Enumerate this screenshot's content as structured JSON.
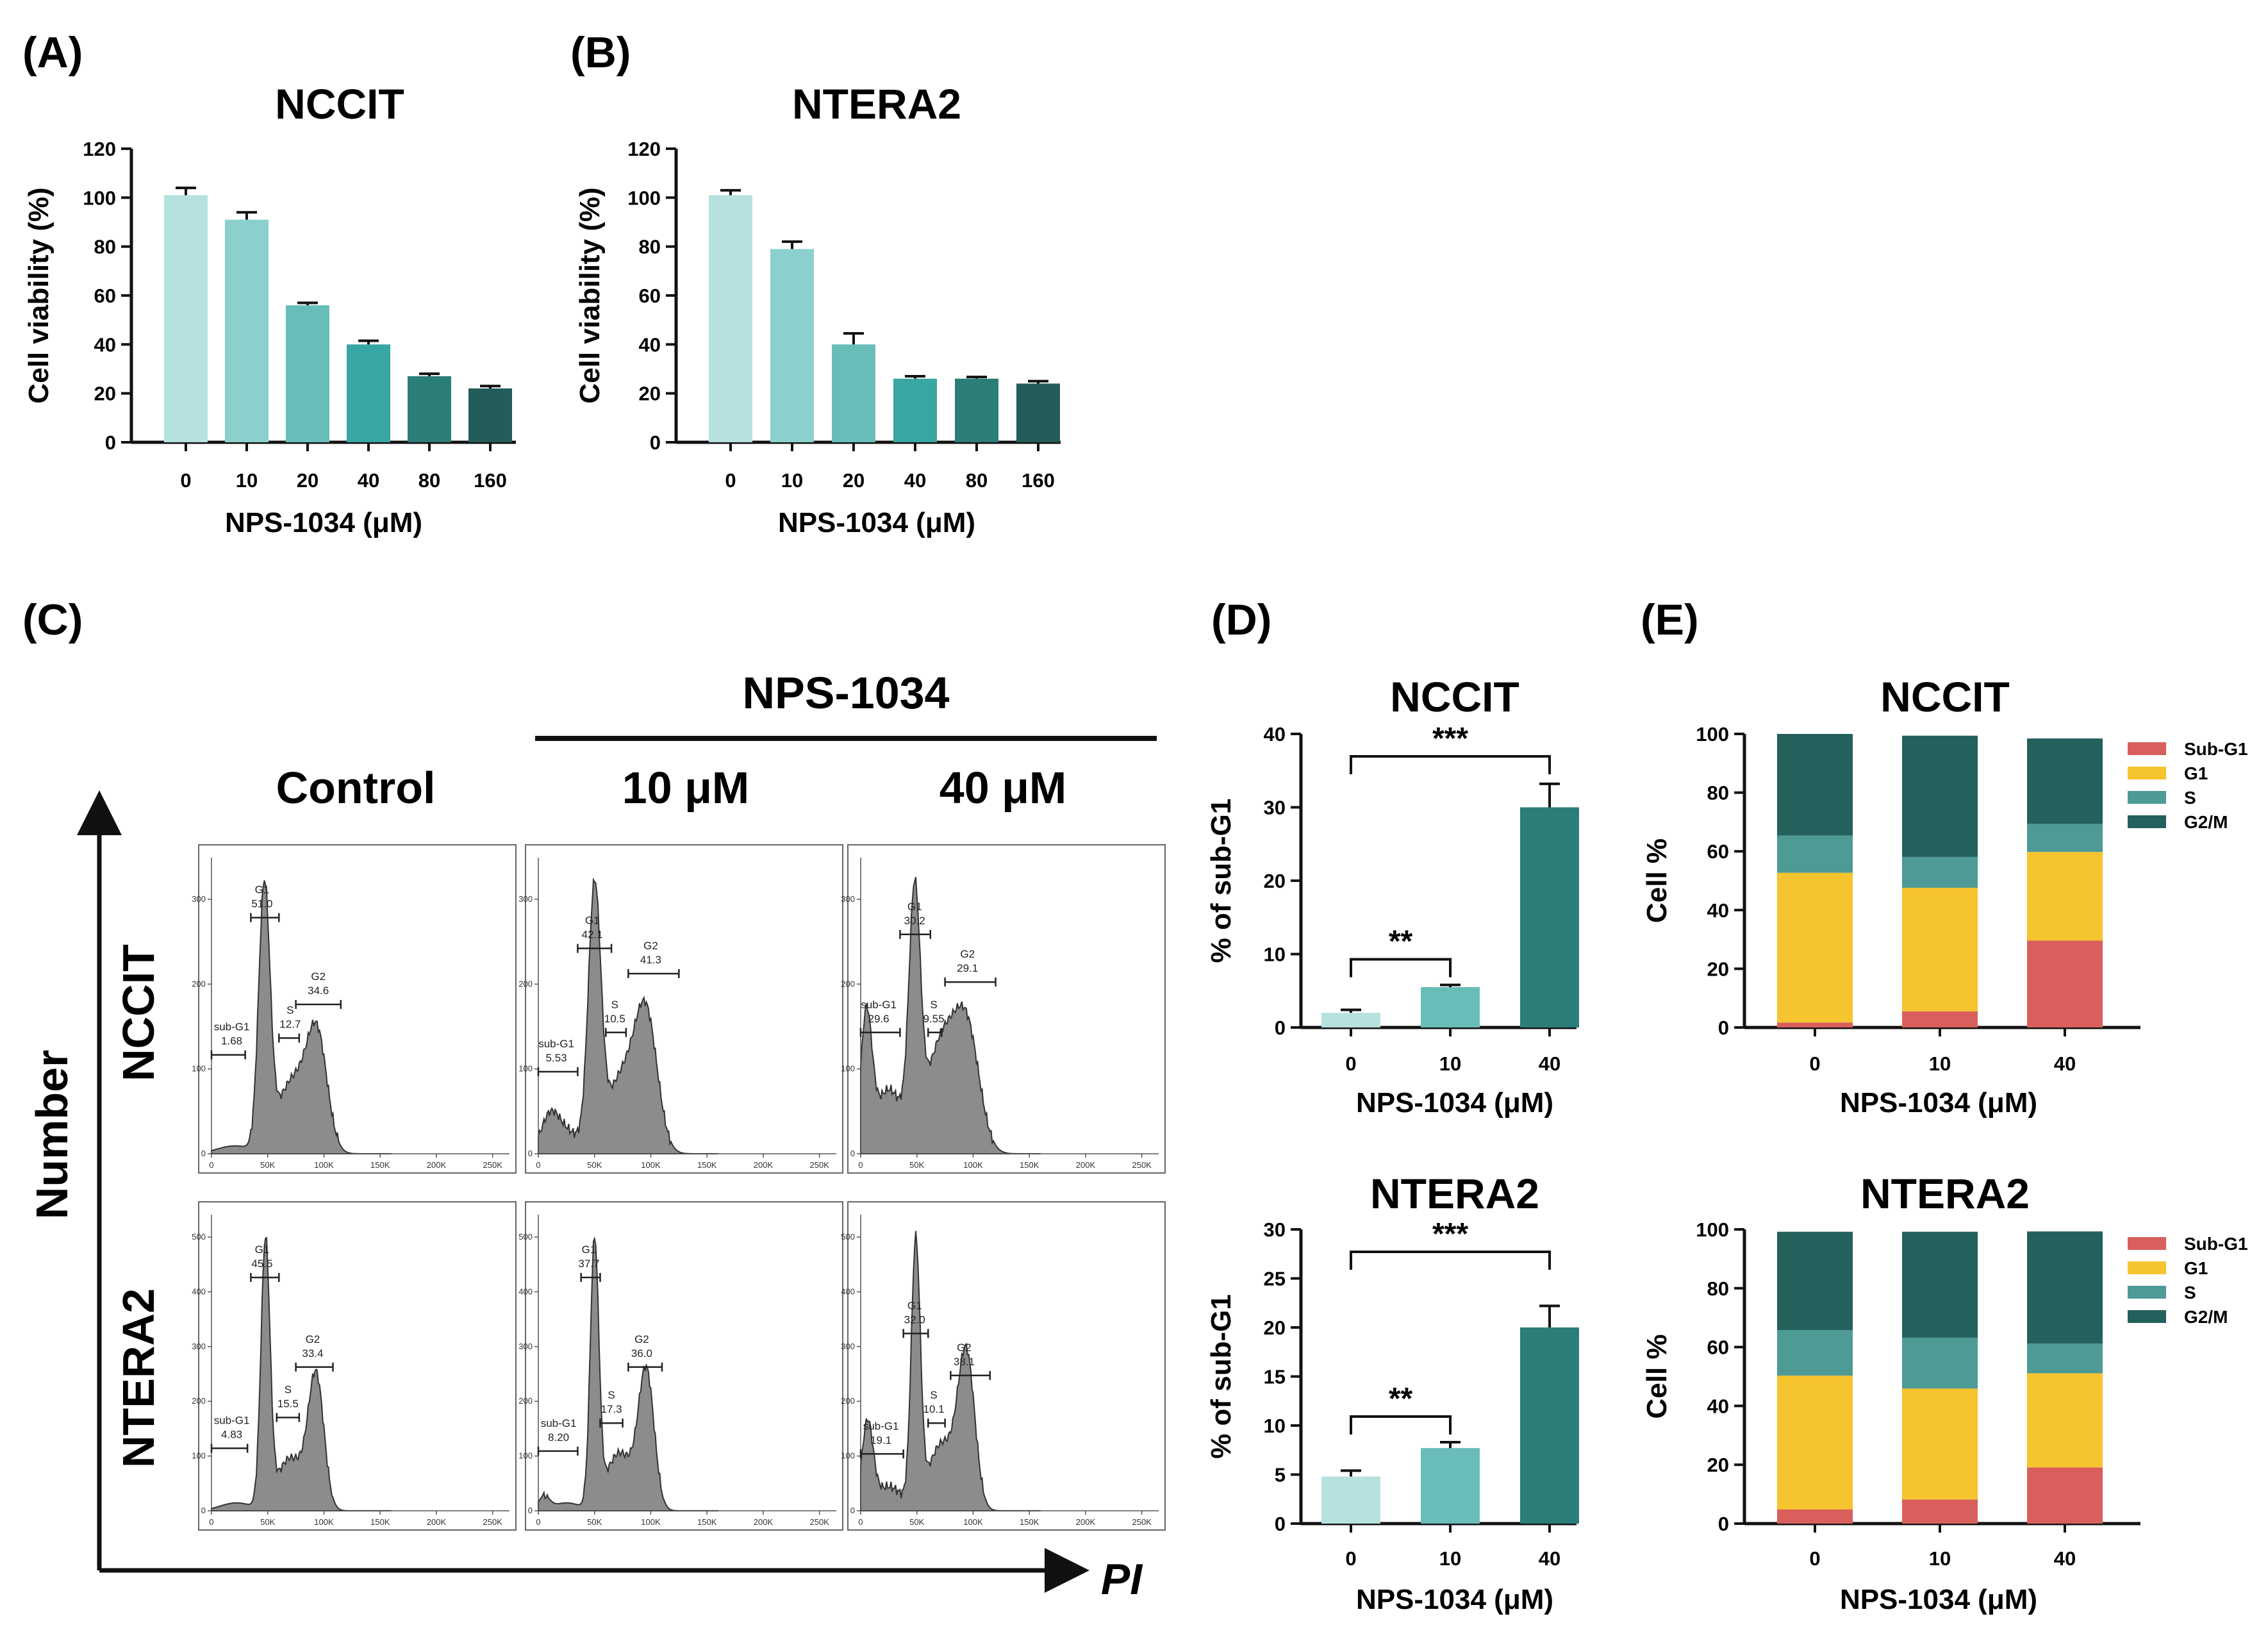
{
  "panels": {
    "A": "(A)",
    "B": "(B)",
    "C": "(C)",
    "D": "(D)",
    "E": "(E)"
  },
  "panel_c": {
    "treatment_header": "NPS-1034",
    "col_headers": [
      "Control",
      "10 μM",
      "40 μM"
    ],
    "row_headers": [
      "NCCIT",
      "NTERA2"
    ],
    "y_axis_label": "Number",
    "x_axis_label": "PI",
    "x_ticks": [
      "0",
      "50K",
      "100K",
      "150K",
      "200K",
      "250K"
    ],
    "y_ticks_nccit": [
      "0",
      "100",
      "200",
      "300"
    ],
    "y_ticks_ntera2": [
      "0",
      "100",
      "200",
      "300",
      "400",
      "500"
    ],
    "histograms": [
      {
        "row": "NCCIT",
        "condition": "Control",
        "gates": [
          {
            "name": "G1",
            "value": "51.0"
          },
          {
            "name": "G2",
            "value": "34.6"
          },
          {
            "name": "S",
            "value": "12.7"
          },
          {
            "name": "sub-G1",
            "value": "1.68"
          }
        ]
      },
      {
        "row": "NCCIT",
        "condition": "10 μM",
        "gates": [
          {
            "name": "G1",
            "value": "42.1"
          },
          {
            "name": "G2",
            "value": "41.3"
          },
          {
            "name": "S",
            "value": "10.5"
          },
          {
            "name": "sub-G1",
            "value": "5.53"
          }
        ]
      },
      {
        "row": "NCCIT",
        "condition": "40 μM",
        "gates": [
          {
            "name": "G1",
            "value": "30.2"
          },
          {
            "name": "G2",
            "value": "29.1"
          },
          {
            "name": "S",
            "value": "9.55"
          },
          {
            "name": "sub-G1",
            "value": "29.6"
          }
        ]
      },
      {
        "row": "NTERA2",
        "condition": "Control",
        "gates": [
          {
            "name": "G1",
            "value": "45.5"
          },
          {
            "name": "G2",
            "value": "33.4"
          },
          {
            "name": "S",
            "value": "15.5"
          },
          {
            "name": "sub-G1",
            "value": "4.83"
          }
        ]
      },
      {
        "row": "NTERA2",
        "condition": "10 μM",
        "gates": [
          {
            "name": "G1",
            "value": "37.7"
          },
          {
            "name": "G2",
            "value": "36.0"
          },
          {
            "name": "S",
            "value": "17.3"
          },
          {
            "name": "sub-G1",
            "value": "8.20"
          }
        ]
      },
      {
        "row": "NTERA2",
        "condition": "40 μM",
        "gates": [
          {
            "name": "G1",
            "value": "32.0"
          },
          {
            "name": "G2",
            "value": "38.1"
          },
          {
            "name": "S",
            "value": "10.1"
          },
          {
            "name": "sub-G1",
            "value": "19.1"
          }
        ]
      }
    ]
  },
  "chart_data": [
    {
      "id": "A",
      "type": "bar",
      "title": "NCCIT",
      "xlabel": "NPS-1034  (μM)",
      "ylabel": "Cell viability (%)",
      "categories": [
        "0",
        "10",
        "20",
        "40",
        "80",
        "160"
      ],
      "values": [
        101,
        91,
        56,
        40,
        27,
        22
      ],
      "errors": [
        3,
        3,
        1,
        1.5,
        1,
        1
      ],
      "ylim": [
        0,
        120
      ],
      "yticks": [
        "0",
        "20",
        "40",
        "60",
        "80",
        "100",
        "120"
      ],
      "colors": [
        "#b5e1df",
        "#8bd0cc",
        "#68bdb8",
        "#38a6a2",
        "#2b7d78",
        "#235c59"
      ]
    },
    {
      "id": "B",
      "type": "bar",
      "title": "NTERA2",
      "xlabel": "NPS-1034  (μM)",
      "ylabel": "Cell viability (%)",
      "categories": [
        "0",
        "10",
        "20",
        "40",
        "80",
        "160"
      ],
      "values": [
        101,
        79,
        40,
        26,
        26,
        24
      ],
      "errors": [
        2,
        3,
        4.5,
        1,
        0.7,
        1
      ],
      "ylim": [
        0,
        120
      ],
      "yticks": [
        "0",
        "20",
        "40",
        "60",
        "80",
        "100",
        "120"
      ],
      "colors": [
        "#b5e1df",
        "#8bd0cc",
        "#68bdb8",
        "#38a6a2",
        "#2b7d78",
        "#235c59"
      ]
    },
    {
      "id": "D1",
      "type": "bar",
      "title": "NCCIT",
      "xlabel": "NPS-1034  (μM)",
      "ylabel": "% of sub-G1",
      "categories": [
        "0",
        "10",
        "40"
      ],
      "values": [
        2,
        5.5,
        30
      ],
      "errors": [
        0.4,
        0.3,
        3.2
      ],
      "ylim": [
        0,
        40
      ],
      "yticks": [
        "0",
        "10",
        "20",
        "30",
        "40"
      ],
      "colors": [
        "#b5e1df",
        "#68bdb8",
        "#2b7d78"
      ],
      "significance": [
        {
          "from": "0",
          "to": "10",
          "label": "**"
        },
        {
          "from": "0",
          "to": "40",
          "label": "***"
        }
      ]
    },
    {
      "id": "D2",
      "type": "bar",
      "title": "NTERA2",
      "xlabel": "NPS-1034  (μM)",
      "ylabel": "% of sub-G1",
      "categories": [
        "0",
        "10",
        "40"
      ],
      "values": [
        4.8,
        7.7,
        20
      ],
      "errors": [
        0.6,
        0.6,
        2.2
      ],
      "ylim": [
        0,
        30
      ],
      "yticks": [
        "0",
        "5",
        "10",
        "15",
        "20",
        "25",
        "30"
      ],
      "colors": [
        "#b5e1df",
        "#68bdb8",
        "#2b7d78"
      ],
      "significance": [
        {
          "from": "0",
          "to": "10",
          "label": "**"
        },
        {
          "from": "0",
          "to": "40",
          "label": "***"
        }
      ]
    },
    {
      "id": "E1",
      "type": "bar",
      "stacked": true,
      "title": "NCCIT",
      "xlabel": "NPS-1034  (μM)",
      "ylabel": "Cell %",
      "categories": [
        "0",
        "10",
        "40"
      ],
      "ylim": [
        0,
        100
      ],
      "yticks": [
        "0",
        "20",
        "40",
        "60",
        "80",
        "100"
      ],
      "series": [
        {
          "name": "Sub-G1",
          "color": "#d95f5c",
          "values": [
            1.7,
            5.5,
            29.6
          ]
        },
        {
          "name": "G1",
          "color": "#f6c42e",
          "values": [
            51.0,
            42.1,
            30.2
          ]
        },
        {
          "name": "S",
          "color": "#4e9a94",
          "values": [
            12.7,
            10.5,
            9.55
          ]
        },
        {
          "name": "G2/M",
          "color": "#24605c",
          "values": [
            34.6,
            41.3,
            29.1
          ]
        }
      ]
    },
    {
      "id": "E2",
      "type": "bar",
      "stacked": true,
      "title": "NTERA2",
      "xlabel": "NPS-1034  (μM)",
      "ylabel": "Cell %",
      "categories": [
        "0",
        "10",
        "40"
      ],
      "ylim": [
        0,
        100
      ],
      "yticks": [
        "0",
        "20",
        "40",
        "60",
        "80",
        "100"
      ],
      "series": [
        {
          "name": "Sub-G1",
          "color": "#d95f5c",
          "values": [
            4.8,
            8.2,
            19.1
          ]
        },
        {
          "name": "G1",
          "color": "#f6c42e",
          "values": [
            45.5,
            37.7,
            32.0
          ]
        },
        {
          "name": "S",
          "color": "#4e9a94",
          "values": [
            15.5,
            17.3,
            10.1
          ]
        },
        {
          "name": "G2/M",
          "color": "#24605c",
          "values": [
            33.4,
            36.0,
            38.1
          ]
        }
      ]
    }
  ]
}
